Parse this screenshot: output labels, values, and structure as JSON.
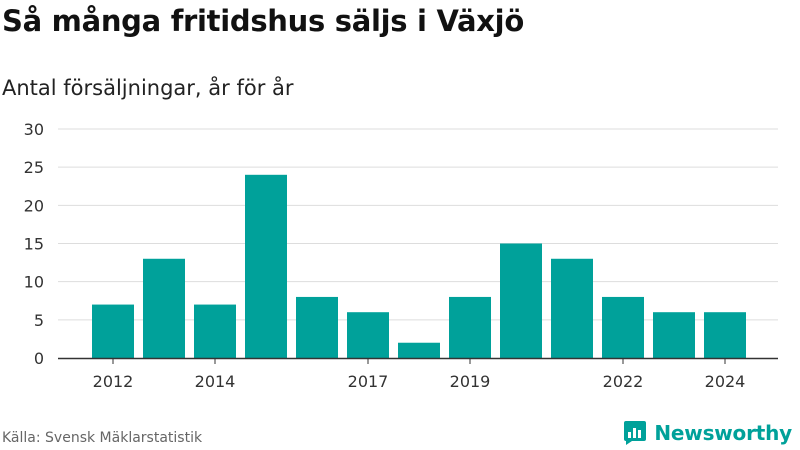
{
  "title": "Så många fritidshus säljs i Växjö",
  "subtitle": "Antal försäljningar, år för år",
  "source": "Källa: Svensk Mäklarstatistik",
  "brand": "Newsworthy",
  "colors": {
    "bar": "#00a19a",
    "grid": "#dddddd",
    "axis": "#333333",
    "brand": "#00a19a"
  },
  "chart_data": {
    "type": "bar",
    "categories": [
      "2012",
      "2013",
      "2014",
      "2015",
      "2016",
      "2017",
      "2018",
      "2019",
      "2020",
      "2021",
      "2022",
      "2023",
      "2024"
    ],
    "values": [
      7,
      13,
      7,
      24,
      8,
      6,
      2,
      8,
      15,
      13,
      8,
      6,
      6
    ],
    "x_tick_labels": [
      "2012",
      "2014",
      "2017",
      "2019",
      "2022",
      "2024"
    ],
    "y_ticks": [
      0,
      5,
      10,
      15,
      20,
      25,
      30
    ],
    "ylim": [
      0,
      30
    ],
    "title": "Så många fritidshus säljs i Växjö",
    "subtitle": "Antal försäljningar, år för år",
    "xlabel": "",
    "ylabel": "",
    "grid": true,
    "legend": false
  }
}
